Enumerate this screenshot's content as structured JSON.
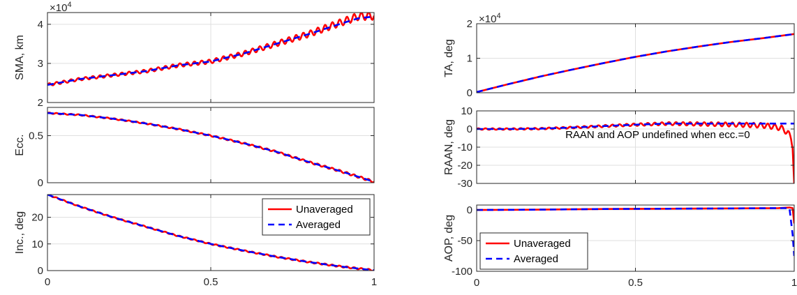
{
  "colors": {
    "unaveraged": "#ff0000",
    "averaged": "#0000ff",
    "axis": "#262626",
    "grid": "#dfdfdf"
  },
  "legend": {
    "series": [
      "Unaveraged",
      "Averaged"
    ]
  },
  "chart_data": [
    {
      "id": "sma",
      "type": "line",
      "ylabel": "SMA, km",
      "multiplier": "×10",
      "exponent": "4",
      "xlim": [
        0,
        1
      ],
      "ylim": [
        2,
        4.3
      ],
      "yticks": [
        "2",
        "3",
        "4"
      ],
      "ytick_values": [
        2,
        3,
        4
      ],
      "xticks": [
        "0",
        "0.5",
        "1"
      ],
      "xtick_values": [
        0,
        0.5,
        1
      ],
      "show_xtick_labels": false,
      "grid": true,
      "series": [
        {
          "name": "Unaveraged",
          "style": "solid",
          "ripple": 0.035,
          "ripple_growth": 2.0,
          "x": [
            0,
            0.1,
            0.2,
            0.3,
            0.4,
            0.5,
            0.6,
            0.7,
            0.8,
            0.9,
            0.95,
            1.0
          ],
          "y": [
            2.45,
            2.6,
            2.7,
            2.8,
            2.95,
            3.05,
            3.25,
            3.5,
            3.75,
            4.05,
            4.2,
            4.22
          ]
        },
        {
          "name": "Averaged",
          "style": "dashed",
          "x": [
            0,
            0.1,
            0.2,
            0.3,
            0.4,
            0.5,
            0.6,
            0.7,
            0.8,
            0.9,
            0.95,
            1.0
          ],
          "y": [
            2.45,
            2.6,
            2.7,
            2.8,
            2.95,
            3.05,
            3.25,
            3.5,
            3.75,
            4.02,
            4.15,
            4.2
          ]
        }
      ]
    },
    {
      "id": "ecc",
      "type": "line",
      "ylabel": "Ecc.",
      "xlim": [
        0,
        1
      ],
      "ylim": [
        0,
        0.8
      ],
      "yticks": [
        "0",
        "0.5"
      ],
      "ytick_values": [
        0,
        0.5
      ],
      "xticks": [
        "0",
        "0.5",
        "1"
      ],
      "xtick_values": [
        0,
        0.5,
        1
      ],
      "show_xtick_labels": false,
      "grid": true,
      "series": [
        {
          "name": "Unaveraged",
          "style": "solid",
          "ripple": 0.006,
          "ripple_growth": 1.0,
          "x": [
            0,
            0.1,
            0.2,
            0.3,
            0.4,
            0.5,
            0.6,
            0.7,
            0.8,
            0.9,
            1.0
          ],
          "y": [
            0.74,
            0.72,
            0.68,
            0.63,
            0.57,
            0.5,
            0.42,
            0.33,
            0.22,
            0.12,
            0.01
          ]
        },
        {
          "name": "Averaged",
          "style": "dashed",
          "x": [
            0,
            0.1,
            0.2,
            0.3,
            0.4,
            0.5,
            0.6,
            0.7,
            0.8,
            0.9,
            1.0
          ],
          "y": [
            0.74,
            0.72,
            0.68,
            0.63,
            0.57,
            0.5,
            0.42,
            0.33,
            0.22,
            0.12,
            0.01
          ]
        }
      ]
    },
    {
      "id": "inc",
      "type": "line",
      "ylabel": "Inc., deg",
      "xlim": [
        0,
        1
      ],
      "ylim": [
        0,
        28.5
      ],
      "yticks": [
        "0",
        "10",
        "20"
      ],
      "ytick_values": [
        0,
        10,
        20
      ],
      "xticks": [
        "0",
        "0.5",
        "1"
      ],
      "xtick_values": [
        0,
        0.5,
        1
      ],
      "show_xtick_labels": true,
      "grid": true,
      "legend_position": "top-right",
      "series": [
        {
          "name": "Unaveraged",
          "style": "solid",
          "ripple": 0.2,
          "ripple_growth": 0.5,
          "x": [
            0,
            0.1,
            0.2,
            0.3,
            0.4,
            0.5,
            0.6,
            0.7,
            0.8,
            0.9,
            1.0
          ],
          "y": [
            28.5,
            24,
            20,
            16.5,
            13,
            10,
            7.5,
            5.2,
            3.2,
            1.5,
            0.1
          ]
        },
        {
          "name": "Averaged",
          "style": "dashed",
          "x": [
            0,
            0.1,
            0.2,
            0.3,
            0.4,
            0.5,
            0.6,
            0.7,
            0.8,
            0.9,
            1.0
          ],
          "y": [
            28.5,
            24,
            20,
            16.5,
            13,
            10,
            7.5,
            5.2,
            3.2,
            1.5,
            0.1
          ]
        }
      ]
    },
    {
      "id": "ta",
      "type": "line",
      "ylabel": "TA, deg",
      "multiplier": "×10",
      "exponent": "4",
      "xlim": [
        0,
        1
      ],
      "ylim": [
        0,
        2
      ],
      "yticks": [
        "0",
        "1",
        "2"
      ],
      "ytick_values": [
        0,
        1,
        2
      ],
      "xticks": [
        "0",
        "0.5",
        "1"
      ],
      "xtick_values": [
        0,
        0.5,
        1
      ],
      "show_xtick_labels": false,
      "grid": true,
      "series": [
        {
          "name": "Unaveraged",
          "style": "solid",
          "x": [
            0,
            0.1,
            0.2,
            0.3,
            0.4,
            0.5,
            0.6,
            0.7,
            0.8,
            0.9,
            1.0
          ],
          "y": [
            0.02,
            0.25,
            0.47,
            0.67,
            0.86,
            1.04,
            1.2,
            1.34,
            1.47,
            1.58,
            1.7
          ]
        },
        {
          "name": "Averaged",
          "style": "dashed",
          "x": [
            0,
            0.1,
            0.2,
            0.3,
            0.4,
            0.5,
            0.6,
            0.7,
            0.8,
            0.9,
            1.0
          ],
          "y": [
            0.02,
            0.25,
            0.47,
            0.67,
            0.86,
            1.04,
            1.2,
            1.34,
            1.47,
            1.58,
            1.7
          ]
        }
      ]
    },
    {
      "id": "raan",
      "type": "line",
      "ylabel": "RAAN, deg",
      "xlim": [
        0,
        1
      ],
      "ylim": [
        -30,
        10
      ],
      "yticks": [
        "-30",
        "-20",
        "-10",
        "0",
        "10"
      ],
      "ytick_values": [
        -30,
        -20,
        -10,
        0,
        10
      ],
      "xticks": [
        "0",
        "0.5",
        "1"
      ],
      "xtick_values": [
        0,
        0.5,
        1
      ],
      "show_xtick_labels": false,
      "grid": true,
      "annotation": {
        "text": "RAAN and AOP undefined when ecc.=0",
        "x": 0.57,
        "y": -5
      },
      "series": [
        {
          "name": "Unaveraged",
          "style": "solid",
          "ripple": 0.4,
          "ripple_growth": 3.0,
          "x": [
            0,
            0.1,
            0.2,
            0.3,
            0.4,
            0.5,
            0.6,
            0.7,
            0.8,
            0.9,
            0.94,
            0.96,
            0.98,
            0.99,
            0.995,
            1.0
          ],
          "y": [
            0,
            0,
            0.2,
            0.8,
            1.6,
            2.4,
            3.0,
            2.8,
            2.5,
            2.0,
            1.2,
            0.5,
            -2.0,
            -5.0,
            -9.0,
            -30.0
          ]
        },
        {
          "name": "Averaged",
          "style": "dashed",
          "x": [
            0,
            0.1,
            0.2,
            0.3,
            0.4,
            0.5,
            0.6,
            0.7,
            0.8,
            0.9,
            1.0
          ],
          "y": [
            0,
            0,
            0.2,
            0.8,
            1.6,
            2.4,
            3.0,
            3.0,
            3.0,
            3.0,
            3.0
          ]
        }
      ]
    },
    {
      "id": "aop",
      "type": "line",
      "ylabel": "AOP, deg",
      "xlim": [
        0,
        1
      ],
      "ylim": [
        -100,
        8
      ],
      "yticks": [
        "-100",
        "-50",
        "0"
      ],
      "ytick_values": [
        -100,
        -50,
        0
      ],
      "xticks": [
        "0",
        "0.5",
        "1"
      ],
      "xtick_values": [
        0,
        0.5,
        1
      ],
      "show_xtick_labels": true,
      "grid": true,
      "legend_position": "bottom-left",
      "series": [
        {
          "name": "Unaveraged",
          "style": "solid",
          "x": [
            0,
            0.2,
            0.4,
            0.6,
            0.8,
            0.95,
            0.985,
            0.995,
            1.0
          ],
          "y": [
            0,
            0.5,
            1.5,
            2.0,
            2.5,
            3.0,
            4.0,
            3.0,
            -22.0
          ]
        },
        {
          "name": "Averaged",
          "style": "dashed",
          "x": [
            0,
            0.2,
            0.4,
            0.6,
            0.8,
            0.95,
            0.985,
            0.995,
            1.0
          ],
          "y": [
            0,
            0.5,
            1.5,
            2.0,
            2.5,
            3.0,
            3.0,
            -40.0,
            -75.0
          ]
        }
      ]
    }
  ]
}
